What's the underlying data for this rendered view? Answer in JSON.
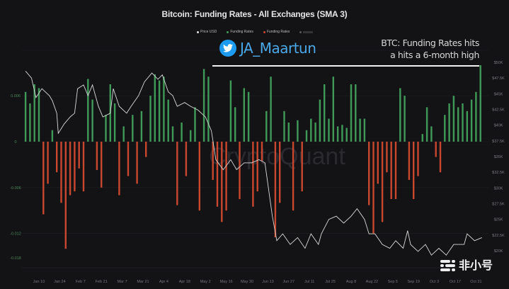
{
  "chart_data": {
    "type": "bar+line",
    "title": "Bitcoin: Funding Rates - All Exchanges (SMA 3)",
    "legend": [
      {
        "label": "Price USD",
        "color": "#e0e0e0"
      },
      {
        "label": "Funding Rates",
        "color": "#3f9a58"
      },
      {
        "label": "Funding Rates",
        "color": "#c8472e"
      },
      {
        "label": "",
        "color": "#555555"
      }
    ],
    "legend_placement": "top-center",
    "grid": true,
    "watermark": "CryptoQuant",
    "x_ticks": [
      "Jan 10",
      "Jan 24",
      "Feb 7",
      "Feb 21",
      "Mar 7",
      "Mar 21",
      "Apr 4",
      "Apr 18",
      "May 2",
      "May 16",
      "May 30",
      "Jun 13",
      "Jun 27",
      "Jul 11",
      "Jul 25",
      "Aug 8",
      "Aug 22",
      "Sep 5",
      "Sep 19",
      "Oct 3",
      "Oct 17",
      "Oct 31"
    ],
    "left_axis": {
      "ticks": [
        "0.006",
        "0",
        "-0.006",
        "-0.012",
        "-0.018"
      ],
      "values": [
        0.006,
        0,
        -0.006,
        -0.012,
        -0.018
      ],
      "ylim": [
        -0.018,
        0.011
      ]
    },
    "right_axis": {
      "ticks": [
        "$50K",
        "$47.5K",
        "$45K",
        "$42.5K",
        "$40K",
        "$37.5K",
        "$35K",
        "$32.5K",
        "$30K",
        "$27.5K",
        "$25K",
        "$22.5K",
        "$20K"
      ],
      "values": [
        50,
        47.5,
        45,
        42.5,
        40,
        37.5,
        35,
        32.5,
        30,
        27.5,
        25,
        22.5,
        20
      ],
      "unit": "USD thousands"
    },
    "positive_color": "#3f9a58",
    "negative_color": "#c8472e",
    "price_color": "#d9d9d9",
    "funding_rates": {
      "x": [
        "Jan 1",
        "Jan 4",
        "Jan 7",
        "Jan 10",
        "Jan 13",
        "Jan 16",
        "Jan 19",
        "Jan 22",
        "Jan 25",
        "Jan 28",
        "Jan 31",
        "Feb 3",
        "Feb 6",
        "Feb 9",
        "Feb 12",
        "Feb 15",
        "Feb 18",
        "Feb 21",
        "Feb 24",
        "Feb 27",
        "Mar 2",
        "Mar 5",
        "Mar 8",
        "Mar 11",
        "Mar 14",
        "Mar 17",
        "Mar 20",
        "Mar 23",
        "Mar 26",
        "Mar 29",
        "Apr 1",
        "Apr 4",
        "Apr 7",
        "Apr 10",
        "Apr 13",
        "Apr 16",
        "Apr 19",
        "Apr 22",
        "Apr 25",
        "Apr 28",
        "May 1",
        "May 4",
        "May 7",
        "May 10",
        "May 13",
        "May 16",
        "May 19",
        "May 22",
        "May 25",
        "May 28",
        "May 31",
        "Jun 3",
        "Jun 6",
        "Jun 9",
        "Jun 12",
        "Jun 15",
        "Jun 18",
        "Jun 21",
        "Jun 24",
        "Jun 27",
        "Jun 30",
        "Jul 3",
        "Jul 6",
        "Jul 9",
        "Jul 12",
        "Jul 15",
        "Jul 18",
        "Jul 21",
        "Jul 24",
        "Jul 27",
        "Jul 30",
        "Aug 2",
        "Aug 5",
        "Aug 8",
        "Aug 11",
        "Aug 14",
        "Aug 17",
        "Aug 20",
        "Aug 23",
        "Aug 26",
        "Aug 29",
        "Sep 1",
        "Sep 4",
        "Sep 7",
        "Sep 10",
        "Sep 13",
        "Sep 16",
        "Sep 19",
        "Sep 22",
        "Sep 25",
        "Sep 28",
        "Oct 1",
        "Oct 4",
        "Oct 7",
        "Oct 10",
        "Oct 13",
        "Oct 16",
        "Oct 19",
        "Oct 22",
        "Oct 25",
        "Oct 28",
        "Oct 31",
        "Nov 3"
      ],
      "values": [
        0.0065,
        0.005,
        0.0075,
        0.007,
        -0.0095,
        -0.0055,
        0.0015,
        -0.004,
        -0.008,
        -0.014,
        -0.007,
        -0.0065,
        -0.0035,
        -0.0065,
        0.0082,
        0.0055,
        -0.0037,
        -0.006,
        0.0035,
        0.0075,
        0.005,
        -0.007,
        0.002,
        -0.0045,
        0.0035,
        -0.0055,
        0.004,
        -0.002,
        0.006,
        0.0088,
        0.008,
        0.0085,
        0.0055,
        0.002,
        -0.0083,
        0.0025,
        -0.0045,
        0.0015,
        0.0045,
        -0.009,
        0.0095,
        0.0085,
        -0.005,
        -0.0085,
        -0.0105,
        -0.009,
        0.008,
        0.0045,
        -0.0075,
        0.007,
        0.0065,
        -0.0085,
        -0.0065,
        -0.0025,
        0.004,
        0.0085,
        -0.0125,
        -0.008,
        0.004,
        0.0025,
        -0.009,
        0.0028,
        -0.0065,
        0.0015,
        0.003,
        0.0025,
        0.0055,
        0.0075,
        0.003,
        0.0085,
        0.002,
        0.0022,
        0.0018,
        0.0075,
        0.0075,
        0.003,
        0.003,
        -0.0083,
        -0.012,
        -0.0055,
        -0.0105,
        -0.004,
        -0.0075,
        -0.0075,
        0.007,
        0.006,
        -0.005,
        -0.0075,
        -0.0045,
        0.001,
        0.0045,
        0.002,
        -0.002,
        -0.004,
        0.0035,
        0.005,
        0.006,
        0.0045,
        0.005,
        0.004,
        0.0055,
        0.0065,
        0.01
      ]
    },
    "price_usd_k": {
      "x": [
        "Jan 1",
        "Jan 5",
        "Jan 8",
        "Jan 12",
        "Jan 17",
        "Jan 19",
        "Jan 22",
        "Jan 23",
        "Jan 27",
        "Jan 31",
        "Feb 3",
        "Feb 5",
        "Feb 9",
        "Feb 12",
        "Feb 15",
        "Feb 19",
        "Feb 22",
        "Feb 27",
        "Mar 1",
        "Mar 5",
        "Mar 10",
        "Mar 13",
        "Mar 18",
        "Mar 22",
        "Mar 27",
        "Mar 31",
        "Apr 3",
        "Apr 7",
        "Apr 10",
        "Apr 13",
        "Apr 18",
        "Apr 22",
        "Apr 27",
        "May 2",
        "May 6",
        "May 9",
        "May 14",
        "May 19",
        "May 23",
        "May 28",
        "Jun 2",
        "Jun 7",
        "Jun 11",
        "Jun 16",
        "Jun 19",
        "Jun 23",
        "Jun 28",
        "Jul 3",
        "Jul 8",
        "Jul 12",
        "Jul 17",
        "Jul 19",
        "Jul 24",
        "Jul 29",
        "Aug 3",
        "Aug 8",
        "Aug 12",
        "Aug 17",
        "Aug 20",
        "Aug 24",
        "Aug 29",
        "Sep 3",
        "Sep 7",
        "Sep 12",
        "Sep 15",
        "Sep 17",
        "Sep 22",
        "Sep 27",
        "Oct 1",
        "Oct 6",
        "Oct 11",
        "Oct 16",
        "Oct 23",
        "Oct 25",
        "Oct 30",
        "Nov 4"
      ],
      "values": [
        48.6,
        47.5,
        44.4,
        45.8,
        44.7,
        43.9,
        41.9,
        38.7,
        40.2,
        41.3,
        41.9,
        45.8,
        46.4,
        44.7,
        46.4,
        43.0,
        41.3,
        41.9,
        45.8,
        43.0,
        41.9,
        43.0,
        44.7,
        46.9,
        48.3,
        47.3,
        48.0,
        45.3,
        44.7,
        43.0,
        43.6,
        43.0,
        42.4,
        41.3,
        39.1,
        34.5,
        32.9,
        34.5,
        32.9,
        34.0,
        34.0,
        34.5,
        34.0,
        25.5,
        21.6,
        22.7,
        21.0,
        22.1,
        20.4,
        22.7,
        21.0,
        22.7,
        25.0,
        25.5,
        24.4,
        25.5,
        26.7,
        25.0,
        22.7,
        22.7,
        21.0,
        20.4,
        21.6,
        20.4,
        23.2,
        21.0,
        19.9,
        21.0,
        19.3,
        20.4,
        19.3,
        21.0,
        21.0,
        22.7,
        21.6,
        22.1
      ]
    }
  },
  "overlay": {
    "twitter_handle": "JA_Maartun",
    "annotation_line1": "BTC: Funding  Rates hits",
    "annotation_line2": "a hits a 6-month high",
    "icon": "twitter-bird-icon"
  },
  "site_logo": "非小号"
}
